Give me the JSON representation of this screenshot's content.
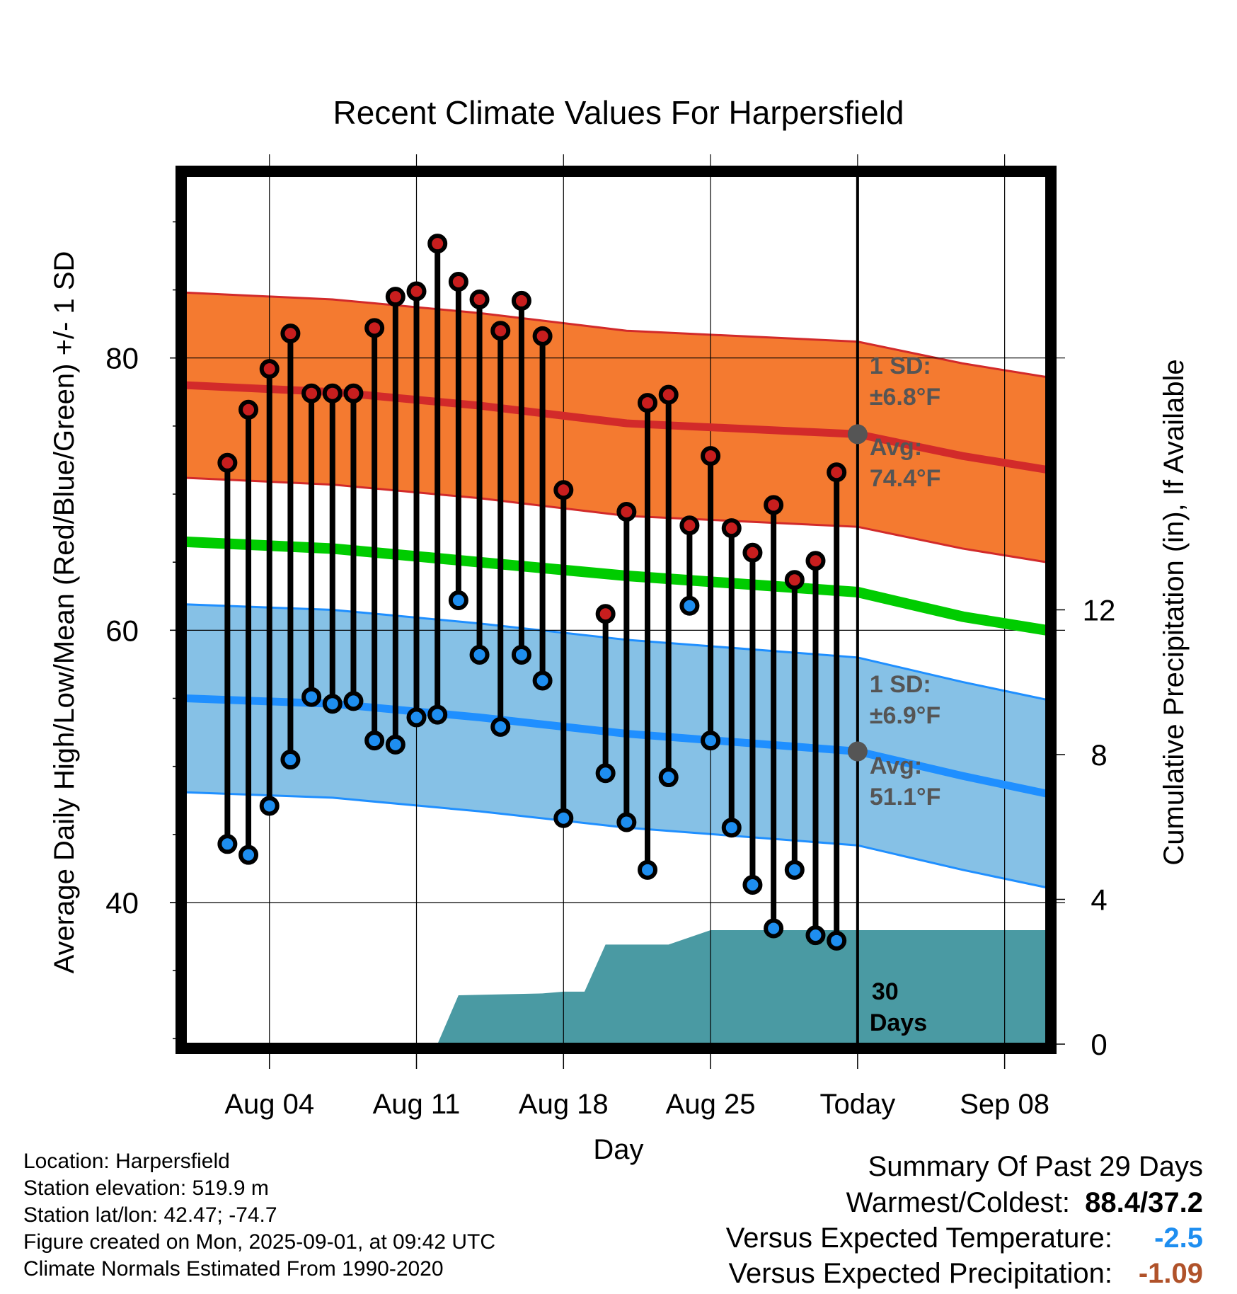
{
  "chart_data": {
    "type": "line",
    "title": "Recent Climate Values For Harpersfield",
    "xlabel": "Day",
    "ylabel": "Average Daily High/Low/Mean (Red/Blue/Green) +/- 1 SD",
    "y2label": "Cumulative Precipitation (in), If Available",
    "x_ticks": [
      "Aug 04",
      "Aug 11",
      "Aug 18",
      "Aug 25",
      "Today",
      "Sep 08"
    ],
    "y_ticks": [
      40,
      60,
      80
    ],
    "y2_ticks": [
      0,
      4,
      8,
      12
    ],
    "ylim": [
      29.6,
      93.4
    ],
    "y2lim": [
      0,
      24
    ],
    "xlim": [
      "Jul 31",
      "Sep 10"
    ],
    "grid": true,
    "normals": {
      "high_avg": [
        78.0,
        77.5,
        76.5,
        75.2,
        74.4,
        72.8,
        71.8
      ],
      "high_sd": 6.8,
      "low_avg": [
        55.0,
        54.6,
        53.6,
        52.4,
        51.1,
        49.3,
        48.0
      ],
      "low_sd": 6.9,
      "mean_avg": [
        66.5,
        66.0,
        65.0,
        64.0,
        62.8,
        61.0,
        60.0
      ],
      "days": [
        "Jul 31",
        "Aug 07",
        "Aug 14",
        "Aug 21",
        "Sep 01",
        "Sep 06",
        "Sep 10"
      ]
    },
    "daily": {
      "dates": [
        "Aug 02",
        "Aug 03",
        "Aug 04",
        "Aug 05",
        "Aug 06",
        "Aug 07",
        "Aug 08",
        "Aug 09",
        "Aug 10",
        "Aug 11",
        "Aug 12",
        "Aug 13",
        "Aug 14",
        "Aug 15",
        "Aug 16",
        "Aug 17",
        "Aug 18",
        "Aug 19",
        "Aug 20",
        "Aug 21",
        "Aug 22",
        "Aug 23",
        "Aug 24",
        "Aug 25",
        "Aug 26",
        "Aug 27",
        "Aug 28",
        "Aug 29",
        "Aug 30",
        "Aug 31"
      ],
      "high": [
        72.3,
        76.2,
        79.2,
        81.8,
        77.4,
        77.4,
        77.4,
        82.2,
        84.5,
        84.9,
        88.4,
        85.6,
        84.3,
        82.0,
        84.2,
        81.6,
        70.3,
        null,
        61.2,
        68.7,
        76.7,
        77.3,
        67.7,
        72.8,
        67.5,
        65.7,
        69.2,
        63.7,
        65.1,
        71.6
      ],
      "low": [
        44.3,
        43.5,
        47.1,
        50.5,
        55.1,
        54.6,
        54.8,
        51.9,
        51.6,
        53.6,
        53.8,
        62.2,
        58.2,
        52.9,
        58.2,
        56.3,
        46.2,
        null,
        49.5,
        45.9,
        42.4,
        49.2,
        61.8,
        51.9,
        45.5,
        41.3,
        38.1,
        42.4,
        37.6,
        37.2
      ],
      "high_marker": [
        "red",
        "red",
        "red",
        "red",
        "red",
        "red",
        "red",
        "red",
        "red",
        "red",
        "red",
        "red",
        "red",
        "red",
        "red",
        "red",
        "red",
        null,
        "red",
        "red",
        "red",
        "red",
        "red",
        "red",
        "red",
        "red",
        "red",
        "red",
        "red",
        "red"
      ],
      "low_marker": [
        "blue",
        "blue",
        "blue",
        "blue",
        "blue",
        "blue",
        "blue",
        "blue",
        "blue",
        "blue",
        "blue",
        "blue",
        "blue",
        "blue",
        "blue",
        "blue",
        "blue",
        null,
        "blue",
        "blue",
        "blue",
        "blue",
        "blue",
        "blue",
        "blue",
        "blue",
        "blue",
        "blue",
        "blue",
        "blue"
      ]
    },
    "precip": {
      "days": [
        "Aug 12",
        "Aug 13",
        "Aug 17",
        "Aug 18",
        "Aug 19",
        "Aug 20",
        "Aug 21",
        "Aug 22",
        "Aug 23",
        "Aug 25",
        "Aug 26",
        "Sep 10"
      ],
      "cumulative": [
        0,
        1.35,
        1.4,
        1.45,
        1.45,
        2.75,
        2.75,
        2.75,
        2.75,
        3.15,
        3.15,
        3.15
      ]
    },
    "annotations": {
      "high_sd_label": "1 SD:",
      "high_sd_value": "±6.8°F",
      "high_avg_label": "Avg:",
      "high_avg_value": "74.4°F",
      "low_sd_label": "1 SD:",
      "low_sd_value": "±6.9°F",
      "low_avg_label": "Avg:",
      "low_avg_value": "51.1°F",
      "window_line1": "30",
      "window_line2": "Days"
    },
    "colors": {
      "high_band": "#f47a30",
      "high_line": "#d22a2a",
      "low_band": "#86c1e6",
      "low_line": "#1f8fff",
      "mean_line": "#00cc00",
      "precip_fill": "#4a9aa3",
      "marker_red": "#c81e1e",
      "marker_blue": "#1e8ef0",
      "annotation": "#555555"
    }
  },
  "info": {
    "location": "Location: Harpersfield",
    "elevation": "Station elevation: 519.9 m",
    "latlon": "Station lat/lon: 42.47; -74.7",
    "created": "Figure created on Mon, 2025-09-01, at 09:42 UTC",
    "normals": "Climate Normals Estimated From 1990-2020"
  },
  "summary": {
    "title": "Summary Of Past 29 Days",
    "warm_cold_label": "Warmest/Coldest:",
    "warm_cold_value": "88.4/37.2",
    "temp_label": "Versus Expected Temperature:",
    "temp_value": "-2.5",
    "temp_color": "#1e8ef0",
    "precip_label": "Versus Expected Precipitation:",
    "precip_value": "-1.09",
    "precip_color": "#b0522a"
  }
}
